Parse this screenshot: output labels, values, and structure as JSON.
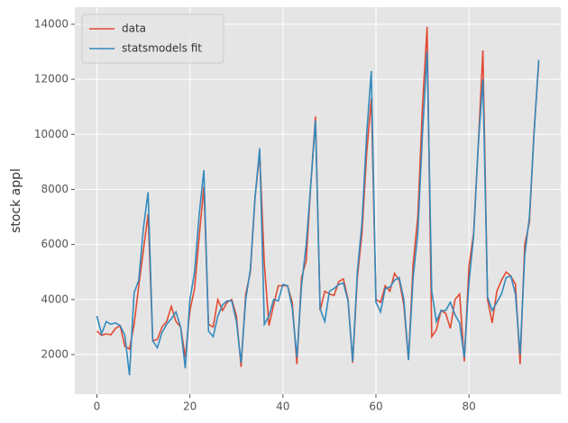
{
  "chart_data": {
    "type": "line",
    "ylabel": "stock appl",
    "x": [
      0,
      1,
      2,
      3,
      4,
      5,
      6,
      7,
      8,
      9,
      10,
      11,
      12,
      13,
      14,
      15,
      16,
      17,
      18,
      19,
      20,
      21,
      22,
      23,
      24,
      25,
      26,
      27,
      28,
      29,
      30,
      31,
      32,
      33,
      34,
      35,
      36,
      37,
      38,
      39,
      40,
      41,
      42,
      43,
      44,
      45,
      46,
      47,
      48,
      49,
      50,
      51,
      52,
      53,
      54,
      55,
      56,
      57,
      58,
      59,
      60,
      61,
      62,
      63,
      64,
      65,
      66,
      67,
      68,
      69,
      70,
      71,
      72,
      73,
      74,
      75,
      76,
      77,
      78,
      79,
      80,
      81,
      82,
      83,
      84,
      85,
      86,
      87,
      88,
      89,
      90,
      91,
      92,
      93,
      94,
      95
    ],
    "series": [
      {
        "name": "data",
        "color": "#E24A33",
        "values": [
          2850,
          2700,
          2750,
          2720,
          2950,
          3050,
          2300,
          2200,
          3100,
          4500,
          5800,
          7100,
          2500,
          2550,
          3000,
          3200,
          3750,
          3200,
          3000,
          1900,
          3600,
          4400,
          6300,
          8100,
          3100,
          3000,
          4000,
          3600,
          3900,
          4000,
          3400,
          1550,
          4200,
          5000,
          7700,
          9300,
          5300,
          3050,
          3800,
          4500,
          4500,
          4500,
          3900,
          1650,
          4800,
          5400,
          8200,
          10650,
          3600,
          4300,
          4200,
          4150,
          4650,
          4750,
          4000,
          1700,
          4800,
          6400,
          9300,
          11300,
          4000,
          3900,
          4500,
          4300,
          4950,
          4700,
          3800,
          1800,
          5300,
          7000,
          11000,
          13900,
          2650,
          2900,
          3600,
          3500,
          2950,
          4000,
          4200,
          1750,
          5200,
          6400,
          9600,
          13050,
          4000,
          3150,
          4300,
          4700,
          5000,
          4850,
          4550,
          1650,
          6000,
          6800,
          10100,
          12600
        ]
      },
      {
        "name": "statsmodels fit",
        "color": "#348ABD",
        "values": [
          3400,
          2750,
          3200,
          3100,
          3150,
          3050,
          2700,
          1250,
          4250,
          4700,
          6600,
          7900,
          2500,
          2250,
          2800,
          3100,
          3300,
          3550,
          3000,
          1500,
          4000,
          5000,
          7100,
          8700,
          2850,
          2650,
          3400,
          3800,
          3950,
          3950,
          3200,
          1700,
          4000,
          5100,
          7700,
          9500,
          3100,
          3400,
          4000,
          3950,
          4550,
          4500,
          3700,
          1900,
          4500,
          6000,
          8200,
          10500,
          3650,
          3200,
          4300,
          4400,
          4550,
          4600,
          3950,
          1750,
          5000,
          6800,
          10000,
          12300,
          3900,
          3550,
          4400,
          4450,
          4700,
          4800,
          4000,
          1800,
          4800,
          6400,
          10000,
          13000,
          4300,
          3200,
          3600,
          3600,
          3900,
          3450,
          3150,
          1900,
          4600,
          6300,
          9600,
          12000,
          4100,
          3600,
          3900,
          4200,
          4800,
          4850,
          4200,
          2000,
          5600,
          7000,
          10000,
          12700
        ]
      }
    ],
    "xlim": [
      -4.75,
      99.75
    ],
    "xticks": [
      0,
      20,
      40,
      60,
      80
    ],
    "ylim": [
      560,
      14620
    ],
    "yticks": [
      2000,
      4000,
      6000,
      8000,
      10000,
      12000,
      14000
    ],
    "grid": true,
    "legend": "upper left"
  }
}
